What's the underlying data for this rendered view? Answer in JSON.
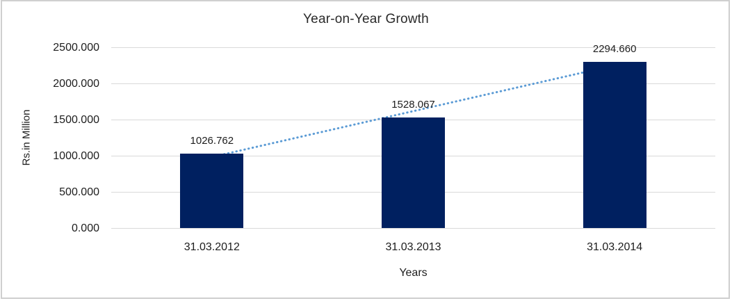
{
  "chart_data": {
    "type": "bar",
    "title": "Year-on-Year Growth",
    "xlabel": "Years",
    "ylabel": "Rs.in Million",
    "categories": [
      "31.03.2012",
      "31.03.2013",
      "31.03.2014"
    ],
    "values": [
      1026.762,
      1528.067,
      2294.66
    ],
    "value_labels": [
      "1026.762",
      "1528.067",
      "2294.660"
    ],
    "ylim": [
      0,
      2500
    ],
    "ytick_step": 500,
    "ytick_labels": [
      "0.000",
      "500.000",
      "1000.000",
      "1500.000",
      "2000.000",
      "2500.000"
    ],
    "grid": true,
    "legend_position": "none",
    "trendline": {
      "type": "linear",
      "style": "dotted"
    },
    "colors": {
      "bar": "#002060",
      "trendline": "#5B9BD5",
      "grid": "#d9d9d9",
      "frame_border": "#cfcfcf",
      "background": "#ffffff"
    }
  }
}
